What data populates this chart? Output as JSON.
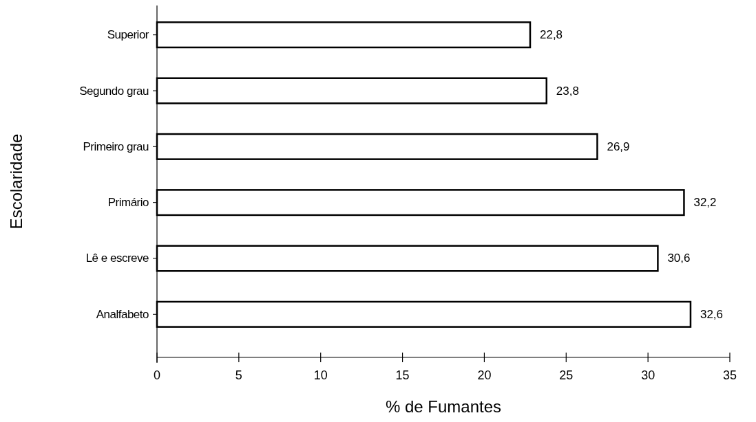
{
  "chart_data": {
    "type": "bar",
    "orientation": "horizontal",
    "xlabel": "% de Fumantes",
    "ylabel": "Escolaridade",
    "categories": [
      "Superior",
      "Segundo grau",
      "Primeiro grau",
      "Primário",
      "Lê e escreve",
      "Analfabeto"
    ],
    "values": [
      22.8,
      23.8,
      26.9,
      32.2,
      30.6,
      32.6
    ],
    "value_labels": [
      "22,8",
      "23,8",
      "26,9",
      "32,2",
      "30,6",
      "32,6"
    ],
    "color": "#ffffff",
    "xlim": [
      0,
      35
    ],
    "xticks": [
      0,
      5,
      10,
      15,
      20,
      25,
      30,
      35
    ],
    "grid": false
  }
}
